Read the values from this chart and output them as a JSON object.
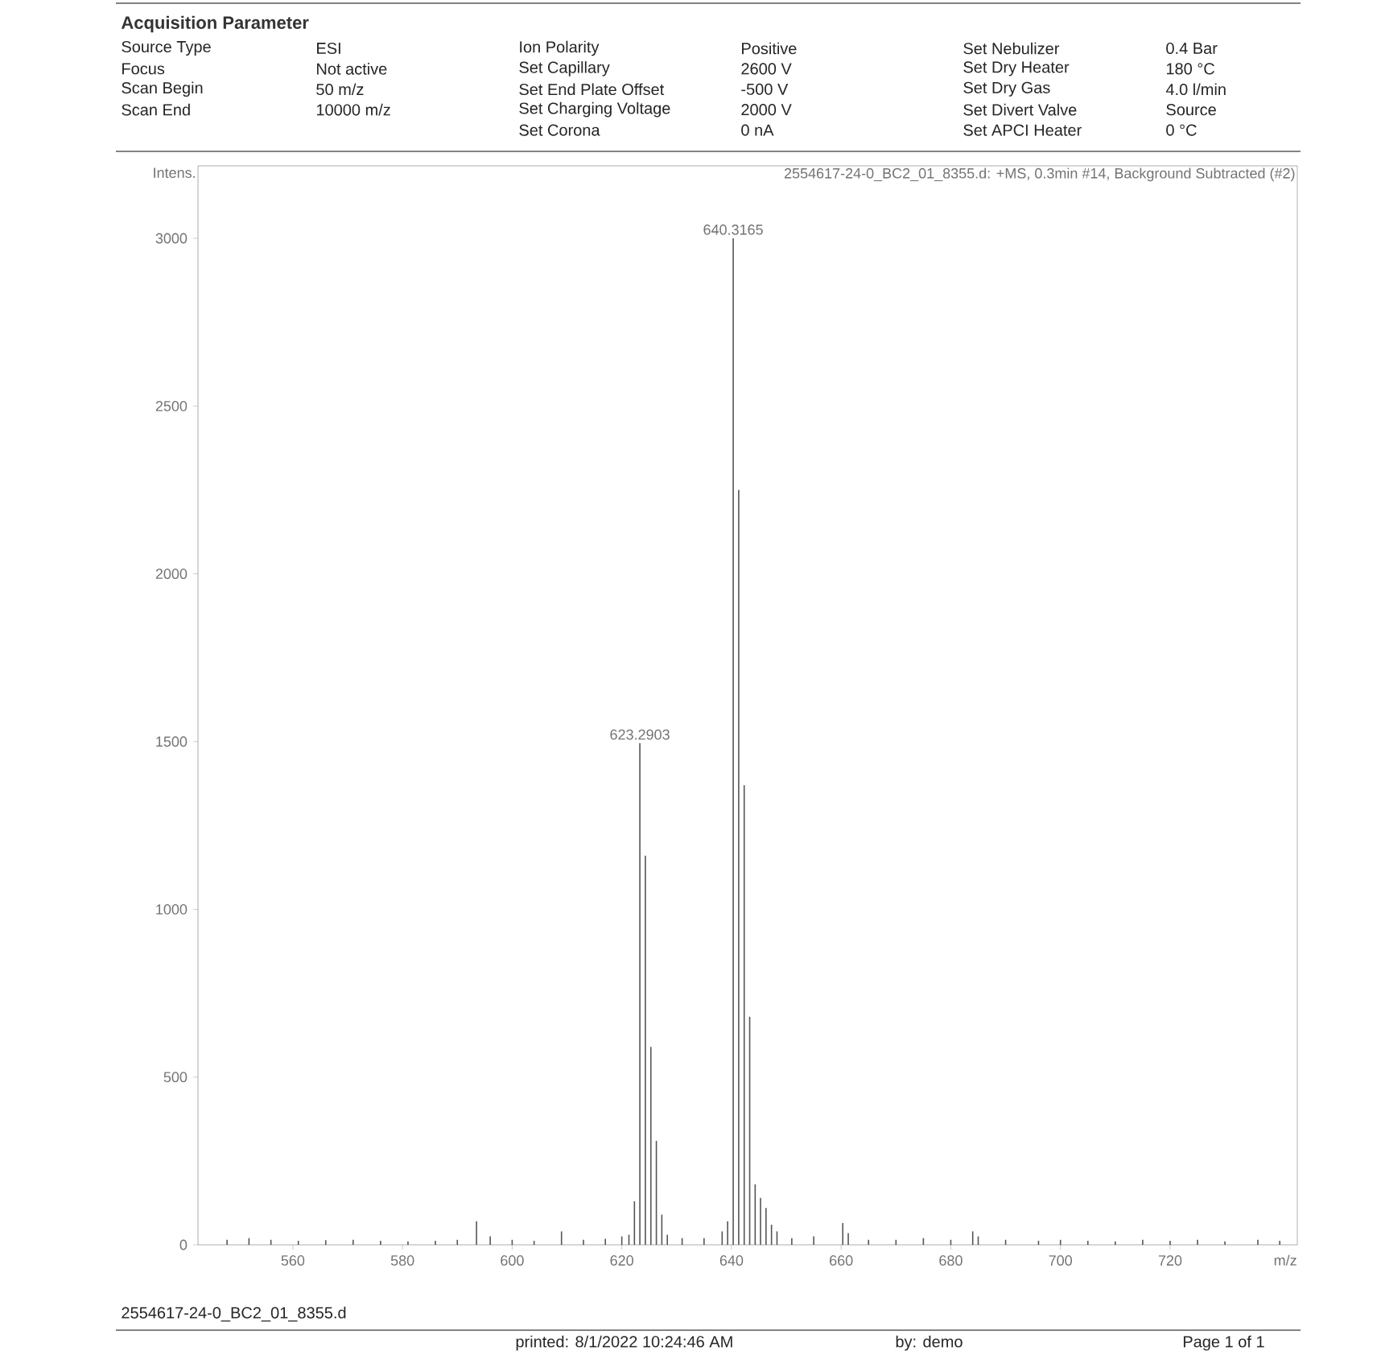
{
  "chart_data": {
    "type": "bar",
    "title": "Acquisition Parameter",
    "subtitle": "2554617-24-0_BC2_01_8355.d: +MS, 0.3min #14, Background Subtracted (#2)",
    "xlabel": "m/z",
    "ylabel": "Intens.",
    "x": [
      548,
      552,
      556,
      561,
      566,
      571,
      576,
      581,
      586,
      590,
      593.5,
      596,
      600,
      604,
      609,
      613,
      617,
      620,
      621.3,
      622.3,
      623.2903,
      624.29,
      625.3,
      626.3,
      627.3,
      628.3,
      631,
      635,
      638.3,
      639.3,
      640.3165,
      641.32,
      642.32,
      643.32,
      644.32,
      645.3,
      646.3,
      647.3,
      648.3,
      651,
      655,
      660.3,
      661.3,
      665,
      670,
      675,
      680,
      684,
      685,
      690,
      696,
      700,
      705,
      710,
      715,
      720,
      725,
      730,
      736,
      740
    ],
    "series": [
      {
        "color": "#555555",
        "values": [
          15,
          20,
          15,
          12,
          14,
          15,
          12,
          10,
          12,
          15,
          70,
          25,
          15,
          12,
          40,
          15,
          18,
          25,
          30,
          130,
          1495,
          1160,
          590,
          310,
          90,
          30,
          20,
          20,
          40,
          70,
          3000,
          2250,
          1370,
          680,
          180,
          140,
          110,
          60,
          40,
          20,
          25,
          65,
          35,
          15,
          15,
          20,
          15,
          40,
          25,
          15,
          12,
          15,
          12,
          10,
          15,
          12,
          15,
          10,
          15,
          12
        ]
      }
    ],
    "xlim": [
      542.7,
      743.2
    ],
    "ylim": [
      0,
      3216
    ],
    "xticks": [
      560,
      580,
      600,
      620,
      640,
      660,
      680,
      700,
      720
    ],
    "yticks": [
      0,
      500,
      1000,
      1500,
      2000,
      2500,
      3000
    ],
    "annotations": [
      "Source Type",
      "ESI",
      "Focus",
      "Not active",
      "Scan Begin",
      "50 m/z",
      "Scan End",
      "10000 m/z",
      "Ion Polarity",
      "Positive",
      "Set Capillary",
      "2600 V",
      "Set End Plate Offset",
      "-500 V",
      "Set Charging Voltage",
      "2000 V",
      "Set Corona",
      "0 nA",
      "Set Nebulizer",
      "0.4 Bar",
      "Set Dry Heater",
      "180 °C",
      "Set Dry Gas",
      "4.0 l/min",
      "Set Divert Valve",
      "Source",
      "Set APCI Heater",
      "0 °C",
      "2554617-24-0_BC2_01_8355.d",
      "printed:  8/1/2022 10:24:46 AM",
      "by:  demo",
      "Page 1 of 1",
      {
        "text": "623.2903",
        "x": 623.2903,
        "y": 1495
      },
      {
        "text": "640.3165",
        "x": 640.3165,
        "y": 3000
      }
    ]
  }
}
